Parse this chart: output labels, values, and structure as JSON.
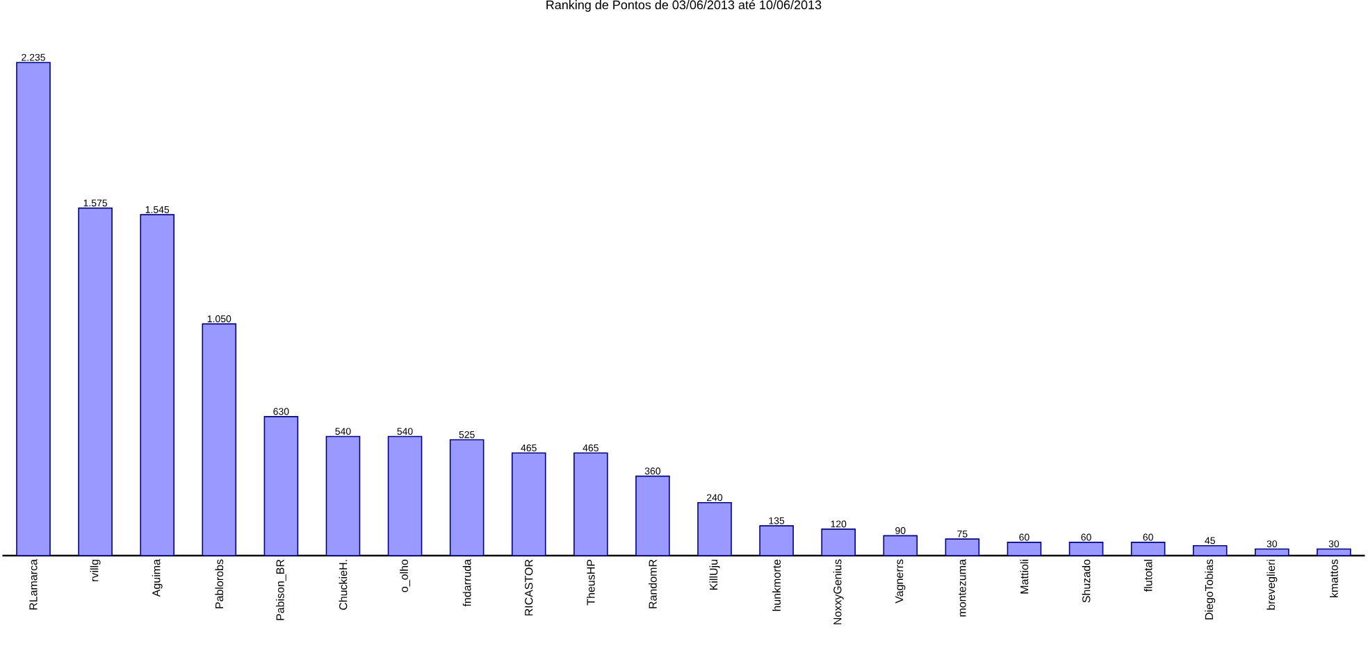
{
  "chart_data": {
    "type": "bar",
    "title": "Ranking de Pontos de 03/06/2013 até 10/06/2013",
    "categories": [
      "RLamarca",
      "rvillg",
      "Aguima",
      "Pablorobs",
      "Pabison_BR",
      "ChuckieH.",
      "o_olho",
      "fndarruda",
      "RICASTOR",
      "TheusHP",
      "RandomR",
      "KillUju",
      "hunkmorte",
      "NoxxyGenius",
      "Vagnerrs",
      "montezuma",
      "Mattioli",
      "Shuzado",
      "flutotal",
      "DiegoTobias",
      "breveglieri",
      "kmattos"
    ],
    "values": [
      2235,
      1575,
      1545,
      1050,
      630,
      540,
      540,
      525,
      465,
      465,
      360,
      240,
      135,
      120,
      90,
      75,
      60,
      60,
      60,
      45,
      30,
      30
    ],
    "value_labels": [
      "2.235",
      "1.575",
      "1.545",
      "1.050",
      "630",
      "540",
      "540",
      "525",
      "465",
      "465",
      "360",
      "240",
      "135",
      "120",
      "90",
      "75",
      "60",
      "60",
      "60",
      "45",
      "30",
      "30"
    ],
    "color": "#9999ff"
  }
}
